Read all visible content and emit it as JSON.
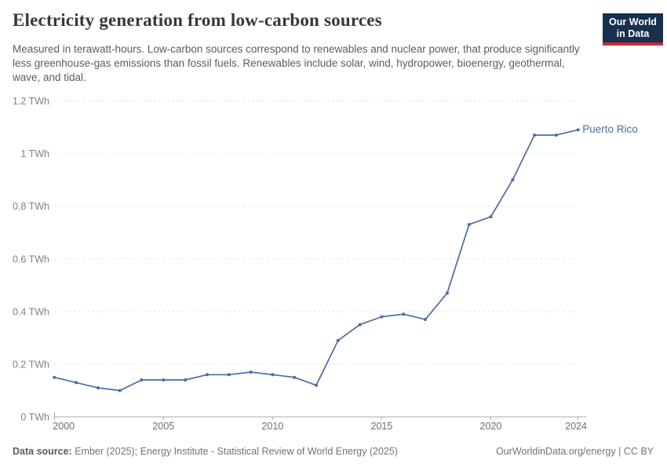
{
  "header": {
    "title": "Electricity generation from low-carbon sources",
    "subtitle": "Measured in terawatt-hours. Low-carbon sources correspond to renewables and nuclear power, that produce significantly less greenhouse-gas emissions than fossil fuels. Renewables include solar, wind, hydropower, bioenergy, geothermal, wave, and tidal.",
    "logo_line1": "Our World",
    "logo_line2": "in Data"
  },
  "chart_data": {
    "type": "line",
    "title": "Electricity generation from low-carbon sources",
    "unit": "TWh",
    "x_range": [
      2000,
      2024
    ],
    "ylim": [
      0,
      1.2
    ],
    "grid": "horizontal-dashed",
    "legend_position": "end-of-line-label",
    "xticks": [
      "2000",
      "2005",
      "2010",
      "2015",
      "2020",
      "2024"
    ],
    "xtick_years": [
      2000,
      2005,
      2010,
      2015,
      2020,
      2024
    ],
    "yticks": [
      {
        "value": 0,
        "label": "0 TWh"
      },
      {
        "value": 0.2,
        "label": "0.2 TWh"
      },
      {
        "value": 0.4,
        "label": "0.4 TWh"
      },
      {
        "value": 0.6,
        "label": "0.6 TWh"
      },
      {
        "value": 0.8,
        "label": "0.8 TWh"
      },
      {
        "value": 1,
        "label": "1 TWh"
      },
      {
        "value": 1.2,
        "label": "1.2 TWh"
      }
    ],
    "series": [
      {
        "name": "Puerto Rico",
        "color": "#4C6BA4",
        "x": [
          2000,
          2001,
          2002,
          2003,
          2004,
          2005,
          2006,
          2007,
          2008,
          2009,
          2010,
          2011,
          2012,
          2013,
          2014,
          2015,
          2016,
          2017,
          2018,
          2019,
          2020,
          2021,
          2022,
          2023,
          2024
        ],
        "values": [
          0.15,
          0.13,
          0.11,
          0.1,
          0.14,
          0.14,
          0.14,
          0.16,
          0.16,
          0.17,
          0.16,
          0.15,
          0.12,
          0.29,
          0.35,
          0.38,
          0.39,
          0.37,
          0.47,
          0.73,
          0.76,
          0.9,
          1.07,
          1.07,
          1.09
        ]
      }
    ]
  },
  "colors": {
    "gridline": "#dcdcdc",
    "axis": "#a9a9a9",
    "logo_bg": "#18304F",
    "logo_accent": "#CE2730"
  },
  "footer": {
    "source_label": "Data source:",
    "source_text": "Ember (2025); Energy Institute - Statistical Review of World Energy (2025)",
    "credit": "OurWorldinData.org/energy | CC BY"
  }
}
